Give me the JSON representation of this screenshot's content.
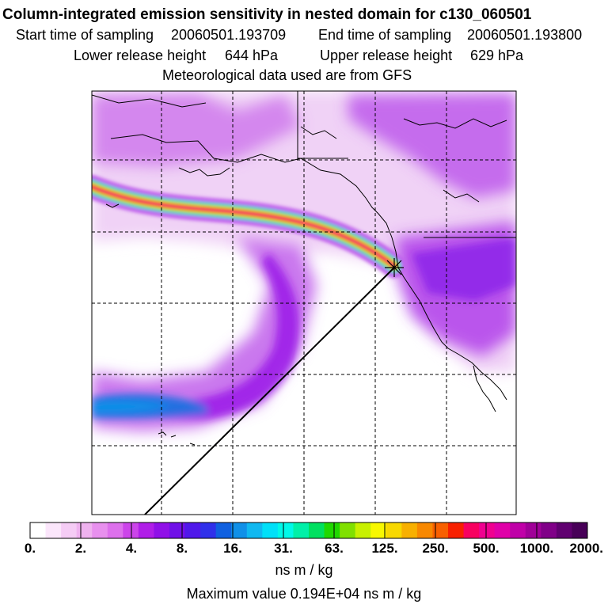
{
  "header": {
    "title": "Column-integrated emission sensitivity in nested domain for c130_060501",
    "start_label": "Start time of sampling",
    "start_value": "20060501.193709",
    "end_label": "End time of sampling",
    "end_value": "20060501.193800",
    "lower_label": "Lower release height",
    "lower_value": "644 hPa",
    "upper_label": "Upper release height",
    "upper_value": "629 hPa",
    "met_line": "Meteorological data used are from GFS"
  },
  "colorbar": {
    "ticks": [
      "0.",
      "2.",
      "4.",
      "8.",
      "16.",
      "31.",
      "63.",
      "125.",
      "250.",
      "500.",
      "1000.",
      "2000."
    ],
    "colors": [
      "#ffffff",
      "#fbe6fb",
      "#f5ccf5",
      "#efb2ef",
      "#e890ee",
      "#dd70ec",
      "#cc44ea",
      "#b01ee8",
      "#9010e8",
      "#7010e8",
      "#5018ea",
      "#3030ea",
      "#1060e0",
      "#1090e8",
      "#10b8f0",
      "#00e0f8",
      "#00f8e8",
      "#00f0a8",
      "#00e060",
      "#20d800",
      "#80e000",
      "#c8f000",
      "#f8f800",
      "#f8d800",
      "#f8b000",
      "#f88800",
      "#f86000",
      "#f82000",
      "#f80060",
      "#f00090",
      "#e000a8",
      "#c000a8",
      "#a00098",
      "#800088",
      "#600070",
      "#480058"
    ],
    "unit": "ns m / kg"
  },
  "max_value": "Maximum value  0.194E+04 ns m / kg",
  "colors": {
    "light_plume": "#f0d2f6",
    "mid_plume": "#c060ec",
    "dense_plume": "#9a18e8",
    "blue_core": "#2070e0",
    "plume_red": "#f82010",
    "plume_yellow": "#f8e000",
    "plume_green": "#40e040",
    "plume_cyan": "#00e0f0"
  }
}
